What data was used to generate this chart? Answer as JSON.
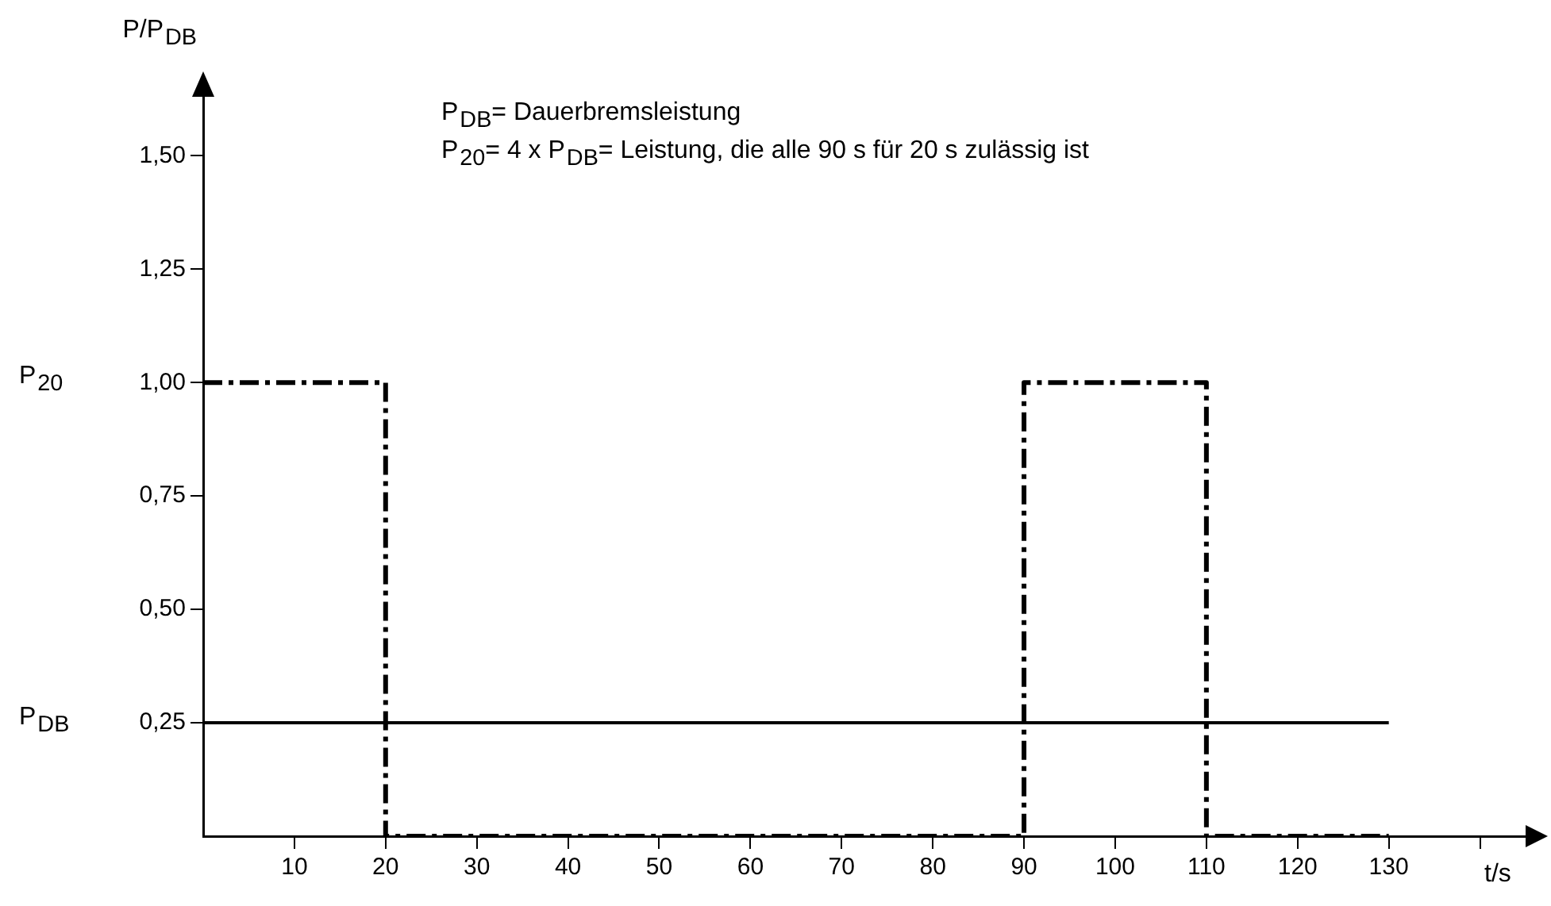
{
  "chart_data": {
    "type": "line",
    "ylabel": "P/P$_{DB}$",
    "xlabel": "t/s",
    "annotations": [
      "P$_{DB}$= Dauerbremsleistung",
      "P$_{20}$= 4 x P$_{DB}$= Leistung, die alle 90 s für 20 s zulässig ist",
      "P$_{20}$",
      "P$_{DB}$"
    ],
    "xlim": [
      0,
      145
    ],
    "ylim": [
      0,
      1.63
    ],
    "xticks": [
      10,
      20,
      30,
      40,
      50,
      60,
      70,
      80,
      90,
      100,
      110,
      120,
      130,
      {
        "value": 140,
        "label": null
      }
    ],
    "yticks": [
      {
        "value": 0.25,
        "label": "0,25"
      },
      {
        "value": 0.5,
        "label": "0,50"
      },
      {
        "value": 0.75,
        "label": "0,75"
      },
      {
        "value": 1,
        "label": "1,00"
      },
      {
        "value": 1.25,
        "label": "1,25"
      },
      {
        "value": 1.5,
        "label": "1,50"
      }
    ],
    "series": [
      {
        "type": "step",
        "x": [
          0,
          20,
          90,
          110,
          130
        ],
        "values": [
          1,
          0,
          1,
          0,
          0
        ],
        "color": "#000000",
        "line_style": "dashed"
      },
      {
        "type": "line",
        "x": [
          0,
          130
        ],
        "values": [
          0.25,
          0.25
        ],
        "color": "#000000",
        "line_style": "solid"
      }
    ],
    "grid": false,
    "legend": false,
    "marker": "none"
  }
}
